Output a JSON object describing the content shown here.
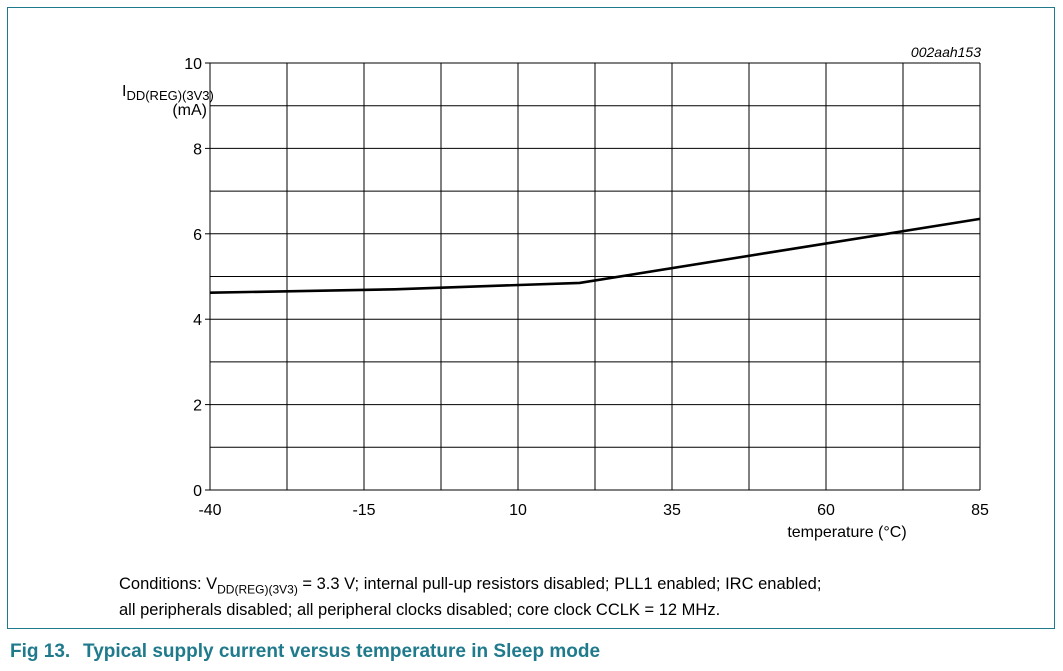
{
  "chart_data": {
    "type": "line",
    "figure_id": "002aah153",
    "ylabel_main": "I",
    "ylabel_sub": "DD(REG)(3V3)",
    "ylabel_unit": "(mA)",
    "xlabel": "temperature (°C)",
    "xlim": [
      -40,
      85
    ],
    "ylim": [
      0,
      10
    ],
    "x_ticks": [
      -40,
      -15,
      10,
      35,
      60,
      85
    ],
    "y_ticks": [
      0,
      2,
      4,
      6,
      8,
      10
    ],
    "x_grid_step": 12.5,
    "y_grid_step": 1,
    "grid": true,
    "series": [
      {
        "x": [
          -40,
          -10,
          20,
          85
        ],
        "y": [
          4.62,
          4.7,
          4.85,
          6.35
        ]
      }
    ]
  },
  "conditions": {
    "prefix": "Conditions: V",
    "sub": "DD(REG)(3V3)",
    "line1_rest": " = 3.3 V; internal pull-up resistors disabled; PLL1 enabled; IRC enabled;",
    "line2": "all peripherals disabled; all peripheral clocks disabled; core clock CCLK = 12 MHz."
  },
  "caption": {
    "number": "Fig 13.",
    "title": "Typical supply current versus temperature in Sleep mode"
  },
  "colors": {
    "frame": "#1f7a8c",
    "caption": "#1f7a8c",
    "line": "#000000",
    "grid": "#000000"
  }
}
